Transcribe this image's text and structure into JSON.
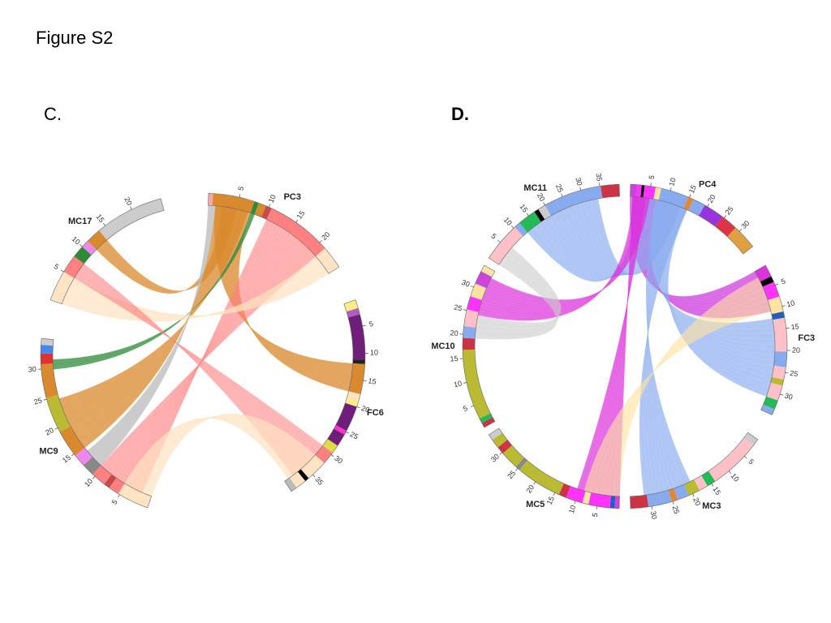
{
  "figure_title": "Figure S2",
  "panels": [
    {
      "id": "C",
      "label": "C.",
      "label_bold": false,
      "chromosomes": [
        {
          "name": "PC3",
          "start_deg": 2,
          "end_deg": 57,
          "ticks": [
            "5",
            "10",
            "15",
            "20"
          ],
          "bands": [
            [
              "#f4a7a7",
              0.0
            ],
            [
              "#d98a2e",
              0.03
            ],
            [
              "#2e8b3a",
              0.3
            ],
            [
              "#d98a2e",
              0.33
            ],
            [
              "#c94a4a",
              0.38
            ],
            [
              "#ff8080",
              0.42
            ],
            [
              "#ffe3c2",
              0.85
            ]
          ]
        },
        {
          "name": "FC6",
          "start_deg": 70,
          "end_deg": 147,
          "ticks": [
            "5",
            "10",
            "15",
            "20",
            "25",
            "30",
            "35"
          ],
          "bands": [
            [
              "#ffee88",
              0.0
            ],
            [
              "#b05cc0",
              0.04
            ],
            [
              "#6f1f7a",
              0.07
            ],
            [
              "#222222",
              0.28
            ],
            [
              "#d98a2e",
              0.3
            ],
            [
              "#ffe3c2",
              0.44
            ],
            [
              "#ffee88",
              0.47
            ],
            [
              "#6f1f7a",
              0.5
            ],
            [
              "#ff33cc",
              0.62
            ],
            [
              "#6f1f7a",
              0.64
            ],
            [
              "#dddd44",
              0.7
            ],
            [
              "#ff8080",
              0.74
            ],
            [
              "#ffe3c2",
              0.8
            ],
            [
              "#000000",
              0.9
            ],
            [
              "#ffe3c2",
              0.92
            ],
            [
              "#bbbbbb",
              0.97
            ]
          ]
        },
        {
          "name": "MC9",
          "start_deg": 200,
          "end_deg": 276,
          "ticks": [
            "5",
            "10",
            "15",
            "20",
            "25",
            "30"
          ],
          "bands": [
            [
              "#ffe3c2",
              0.0
            ],
            [
              "#ff8080",
              0.15
            ],
            [
              "#c94a4a",
              0.2
            ],
            [
              "#ff8080",
              0.23
            ],
            [
              "#888888",
              0.3
            ],
            [
              "#ee88ee",
              0.36
            ],
            [
              "#d98a2e",
              0.42
            ],
            [
              "#bbbb33",
              0.55
            ],
            [
              "#d98a2e",
              0.72
            ],
            [
              "#e03030",
              0.88
            ],
            [
              "#4488ee",
              0.93
            ],
            [
              "#cccccc",
              0.97
            ]
          ]
        },
        {
          "name": "MC17",
          "start_deg": 290,
          "end_deg": 345,
          "ticks": [
            "5",
            "10",
            "15",
            "20"
          ],
          "bands": [
            [
              "#ffe3c2",
              0.0
            ],
            [
              "#ff8080",
              0.2
            ],
            [
              "#2e8b3a",
              0.32
            ],
            [
              "#ee88ee",
              0.4
            ],
            [
              "#d98a2e",
              0.45
            ],
            [
              "#cccccc",
              0.55
            ]
          ]
        }
      ]
    },
    {
      "id": "D",
      "label": "D.",
      "label_bold": true,
      "chromosomes": [
        {
          "name": "PC4",
          "start_deg": 2,
          "end_deg": 52,
          "ticks": [
            "5",
            "10",
            "15",
            "20",
            "25",
            "30"
          ],
          "bands": [
            [
              "#cc44dd",
              0.0
            ],
            [
              "#ff33ff",
              0.05
            ],
            [
              "#000000",
              0.08
            ],
            [
              "#ff33ff",
              0.1
            ],
            [
              "#ffe3a0",
              0.18
            ],
            [
              "#88aaee",
              0.22
            ],
            [
              "#e08833",
              0.42
            ],
            [
              "#88aaee",
              0.46
            ],
            [
              "#9933dd",
              0.55
            ],
            [
              "#dd3344",
              0.7
            ],
            [
              "#e0a040",
              0.82
            ]
          ]
        },
        {
          "name": "FC3",
          "start_deg": 60,
          "end_deg": 115,
          "ticks": [
            "5",
            "10",
            "15",
            "20",
            "25",
            "30"
          ],
          "bands": [
            [
              "#dd33dd",
              0.0
            ],
            [
              "#000000",
              0.08
            ],
            [
              "#ff33ff",
              0.12
            ],
            [
              "#ffe3a0",
              0.22
            ],
            [
              "#1f5fbf",
              0.32
            ],
            [
              "#ffc0c8",
              0.36
            ],
            [
              "#88aaee",
              0.58
            ],
            [
              "#ffc0c8",
              0.68
            ],
            [
              "#bbbb33",
              0.76
            ],
            [
              "#ffc0c8",
              0.8
            ],
            [
              "#22bb55",
              0.9
            ],
            [
              "#88aaee",
              0.96
            ]
          ]
        },
        {
          "name": "MC3",
          "start_deg": 125,
          "end_deg": 178,
          "ticks": [
            "5",
            "10",
            "15",
            "20",
            "25",
            "30"
          ],
          "bands": [
            [
              "#cccccc",
              0.0
            ],
            [
              "#ffc0c8",
              0.05
            ],
            [
              "#22bb55",
              0.4
            ],
            [
              "#ffc0c8",
              0.46
            ],
            [
              "#bbbb33",
              0.52
            ],
            [
              "#88aaee",
              0.6
            ],
            [
              "#e08833",
              0.68
            ],
            [
              "#88aaee",
              0.72
            ],
            [
              "#cc3344",
              0.88
            ]
          ]
        },
        {
          "name": "MC5",
          "start_deg": 182,
          "end_deg": 237,
          "ticks": [
            "5",
            "10",
            "15",
            "20",
            "25",
            "30"
          ],
          "bands": [
            [
              "#cc44dd",
              0.0
            ],
            [
              "#1f5fbf",
              0.03
            ],
            [
              "#ff33ff",
              0.06
            ],
            [
              "#ffe3a0",
              0.2
            ],
            [
              "#ff33ff",
              0.24
            ],
            [
              "#cc3344",
              0.35
            ],
            [
              "#bbbb33",
              0.4
            ],
            [
              "#888888",
              0.7
            ],
            [
              "#bbbb33",
              0.73
            ],
            [
              "#cc3344",
              0.85
            ],
            [
              "#bbbb33",
              0.9
            ],
            [
              "#cccccc",
              0.96
            ]
          ]
        },
        {
          "name": "MC10",
          "start_deg": 240,
          "end_deg": 300,
          "ticks": [
            "5",
            "10",
            "15",
            "20",
            "25",
            "30"
          ],
          "bands": [
            [
              "#cc3344",
              0.0
            ],
            [
              "#22bb55",
              0.03
            ],
            [
              "#bbbb33",
              0.06
            ],
            [
              "#cc3344",
              0.48
            ],
            [
              "#88aaee",
              0.55
            ],
            [
              "#ffc0c8",
              0.62
            ],
            [
              "#ff33ff",
              0.72
            ],
            [
              "#ffe3a0",
              0.8
            ],
            [
              "#cc44dd",
              0.88
            ],
            [
              "#ffe3a0",
              0.96
            ]
          ]
        },
        {
          "name": "MC11",
          "start_deg": 303,
          "end_deg": 358,
          "ticks": [
            "5",
            "10",
            "15",
            "20",
            "25",
            "30",
            "35"
          ],
          "bands": [
            [
              "#ffc0c8",
              0.0
            ],
            [
              "#88aaee",
              0.26
            ],
            [
              "#22bb55",
              0.3
            ],
            [
              "#000000",
              0.42
            ],
            [
              "#cccccc",
              0.45
            ],
            [
              "#88aaee",
              0.5
            ],
            [
              "#cc3344",
              0.88
            ]
          ]
        }
      ]
    }
  ]
}
